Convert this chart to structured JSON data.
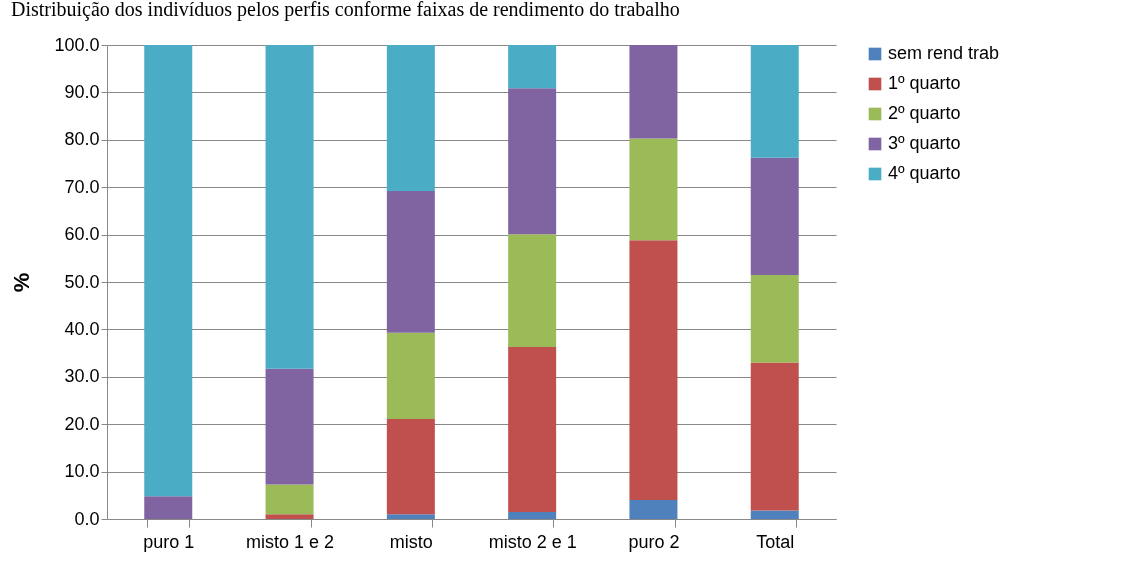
{
  "chart_data": {
    "type": "bar",
    "stacked": true,
    "title": "Distribuição dos indivíduos pelos perfis conforme faixas de rendimento do trabalho",
    "ylabel": "%",
    "categories": [
      "puro 1",
      "misto 1 e 2",
      "misto",
      "misto 2 e 1",
      "puro 2",
      "Total"
    ],
    "series": [
      {
        "name": "sem rend trab",
        "color": "#4f81bd",
        "values": [
          0,
          0,
          1.0,
          1.5,
          4.0,
          1.8
        ]
      },
      {
        "name": "1º quarto",
        "color": "#c0504d",
        "values": [
          0,
          1.0,
          20.1,
          34.8,
          54.8,
          31.2
        ]
      },
      {
        "name": "2º quarto",
        "color": "#9bbb59",
        "values": [
          0,
          6.3,
          18.2,
          23.8,
          21.5,
          18.5
        ]
      },
      {
        "name": "3º quarto",
        "color": "#8064a2",
        "values": [
          4.8,
          24.4,
          29.9,
          30.8,
          19.7,
          24.7
        ]
      },
      {
        "name": "4º quarto",
        "color": "#4bacc6",
        "values": [
          95.2,
          68.3,
          30.8,
          9.1,
          0,
          23.8
        ]
      }
    ],
    "ylim": [
      0,
      100
    ],
    "yticks": [
      {
        "value": 0,
        "label": "0.0"
      },
      {
        "value": 10,
        "label": "10.0"
      },
      {
        "value": 20,
        "label": "20.0"
      },
      {
        "value": 30,
        "label": "30.0"
      },
      {
        "value": 40,
        "label": "40.0"
      },
      {
        "value": 50,
        "label": "50.0"
      },
      {
        "value": 60,
        "label": "60.0"
      },
      {
        "value": 70,
        "label": "70.0"
      },
      {
        "value": 80,
        "label": "80.0"
      },
      {
        "value": 90,
        "label": "90.0"
      },
      {
        "value": 100,
        "label": "100.0"
      }
    ],
    "grid": "y",
    "legend": "right"
  }
}
